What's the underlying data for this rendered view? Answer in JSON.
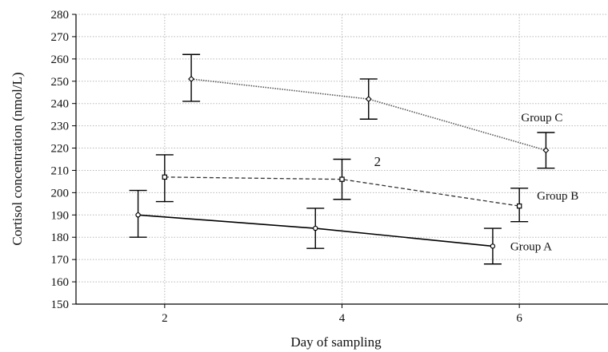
{
  "chart_data": {
    "type": "line",
    "xlabel": "Day of sampling",
    "ylabel": "Cortisol concentration (nmol/L)",
    "xlim": [
      1,
      7
    ],
    "ylim": [
      150,
      280
    ],
    "x_ticks": [
      2,
      4,
      6
    ],
    "y_ticks": [
      150,
      160,
      170,
      180,
      190,
      200,
      210,
      220,
      230,
      240,
      250,
      260,
      270,
      280
    ],
    "grid": true,
    "annotations": [
      {
        "text": "2",
        "x": 4.4,
        "y": 212
      }
    ],
    "series": [
      {
        "name": "Group A",
        "line_style": "solid",
        "marker": "circle",
        "color": "#000000",
        "x": [
          1.7,
          3.7,
          5.7
        ],
        "y": [
          190,
          184,
          176
        ],
        "y_err_low": [
          180,
          175,
          168
        ],
        "y_err_high": [
          201,
          193,
          184
        ]
      },
      {
        "name": "Group B",
        "line_style": "dashed",
        "marker": "square",
        "color": "#333333",
        "x": [
          2.0,
          4.0,
          6.0
        ],
        "y": [
          207,
          206,
          194
        ],
        "y_err_low": [
          196,
          197,
          187
        ],
        "y_err_high": [
          217,
          215,
          202
        ]
      },
      {
        "name": "Group C",
        "line_style": "dotted",
        "marker": "diamond",
        "color": "#555555",
        "x": [
          2.3,
          4.3,
          6.3
        ],
        "y": [
          251,
          242,
          219
        ],
        "y_err_low": [
          241,
          233,
          211
        ],
        "y_err_high": [
          262,
          251,
          227
        ]
      }
    ]
  }
}
